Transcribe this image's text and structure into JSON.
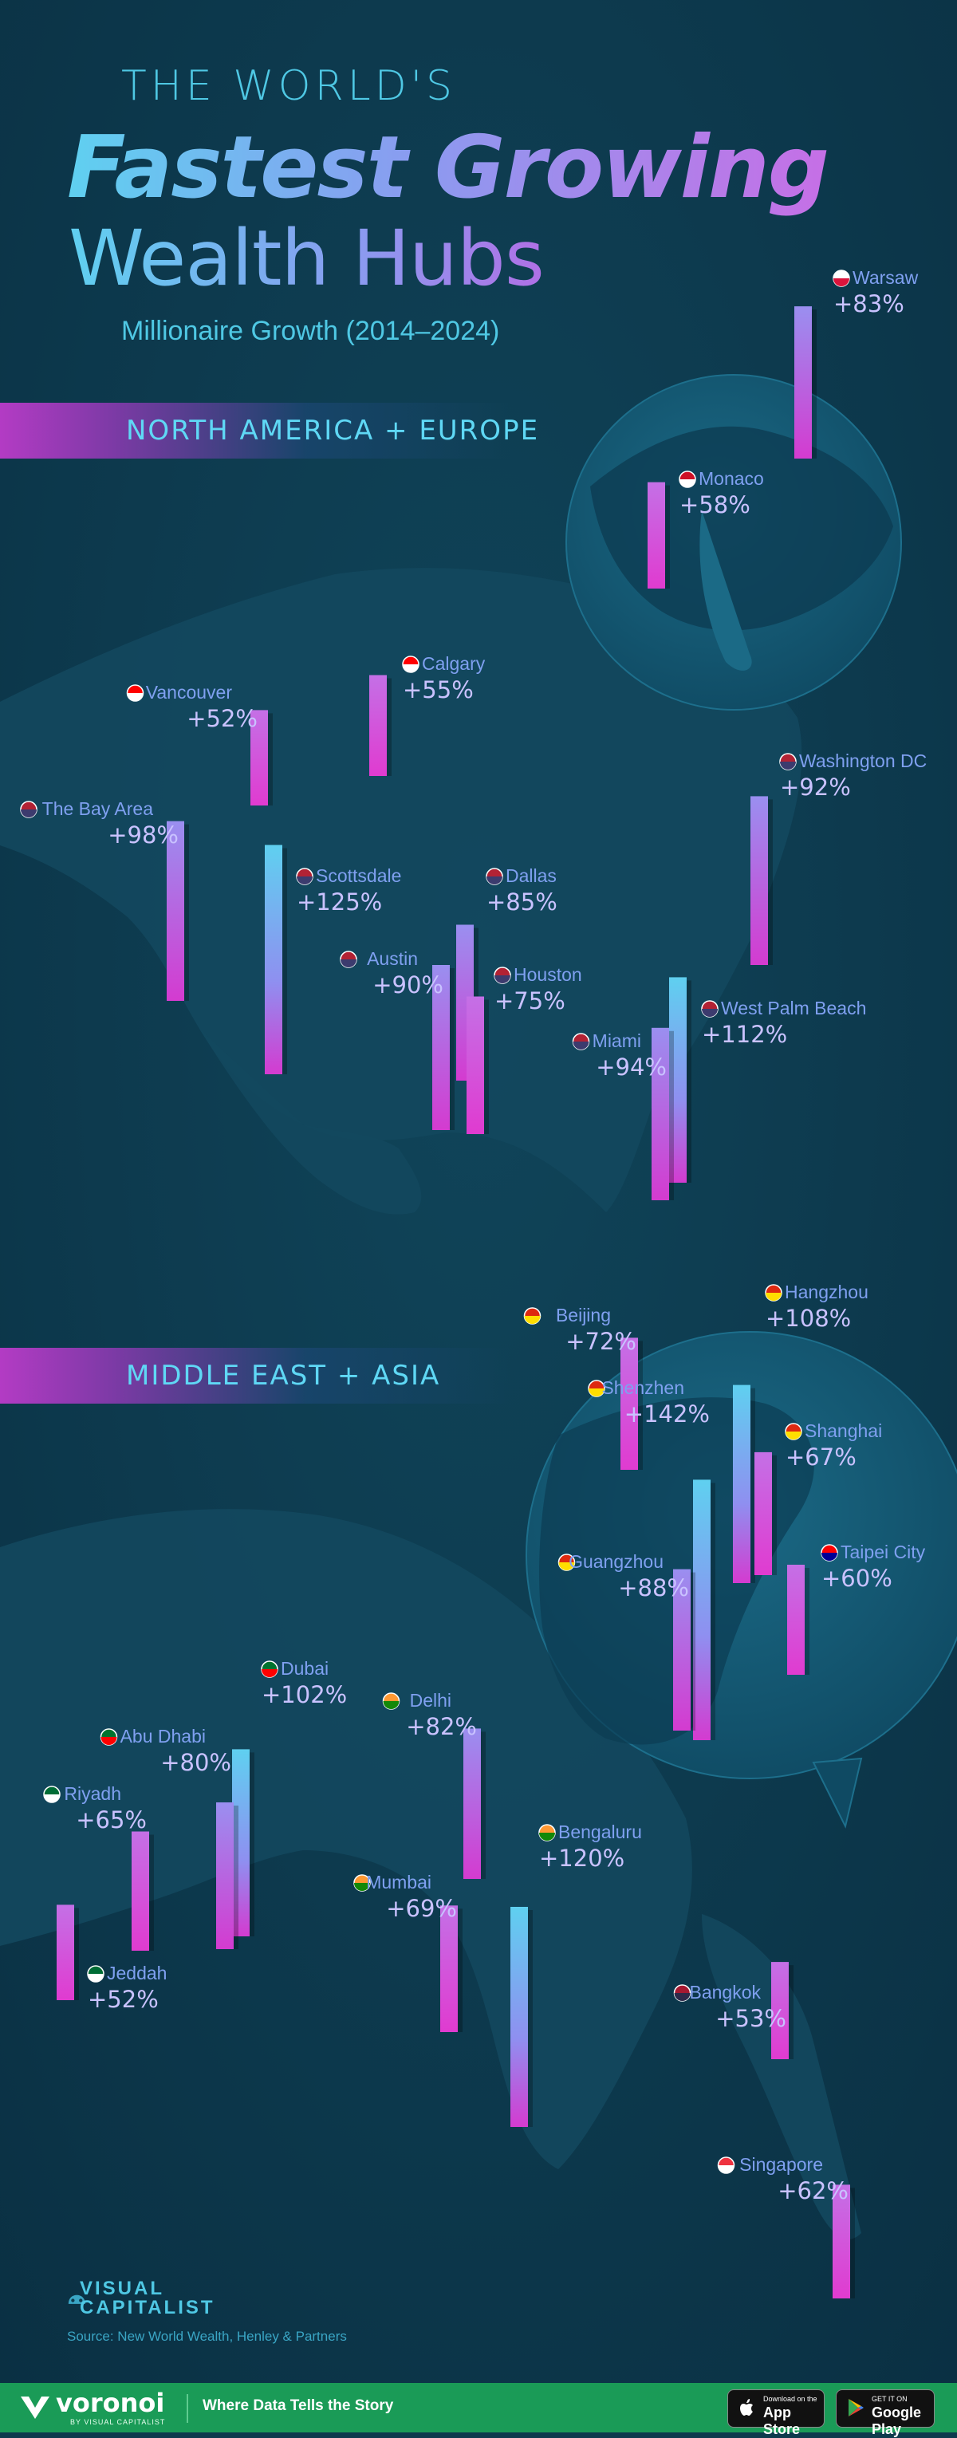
{
  "header": {
    "kicker": "THE WORLD'S",
    "title_line1": "Fastest Growing",
    "title_line2": "Wealth Hubs",
    "subtitle": "Millionaire Growth (2014–2024)"
  },
  "regions": [
    {
      "label": "NORTH AMERICA + EUROPE"
    },
    {
      "label": "MIDDLE EAST + ASIA"
    }
  ],
  "colors": {
    "background": "#0d3a4d",
    "bar_high": "#5fd0f0",
    "bar_mid": "#8f8ff0",
    "bar_low": "#d43bd0",
    "label_name": "#7fa0f0",
    "label_value": "#c9c2ff",
    "footer": "#1a9b57"
  },
  "chart_data": {
    "type": "bar",
    "title": "The World's Fastest Growing Wealth Hubs",
    "subtitle": "Millionaire Growth (2014–2024)",
    "unit": "%",
    "categories": [
      "Warsaw",
      "Monaco",
      "Calgary",
      "Vancouver",
      "The Bay Area",
      "Scottsdale",
      "Austin",
      "Dallas",
      "Houston",
      "Washington DC",
      "West Palm Beach",
      "Miami",
      "Beijing",
      "Hangzhou",
      "Shenzhen",
      "Shanghai",
      "Guangzhou",
      "Taipei City",
      "Dubai",
      "Abu Dhabi",
      "Riyadh",
      "Jeddah",
      "Delhi",
      "Mumbai",
      "Bengaluru",
      "Bangkok",
      "Singapore"
    ],
    "values": [
      83,
      58,
      55,
      52,
      98,
      125,
      90,
      85,
      75,
      92,
      112,
      94,
      72,
      108,
      142,
      67,
      88,
      60,
      102,
      80,
      65,
      52,
      82,
      69,
      120,
      53,
      62
    ],
    "value_labels": [
      "+83%",
      "+58%",
      "+55%",
      "+52%",
      "+98%",
      "+125%",
      "+90%",
      "+85%",
      "+75%",
      "+92%",
      "+112%",
      "+94%",
      "+72%",
      "+108%",
      "+142%",
      "+67%",
      "+88%",
      "+60%",
      "+102%",
      "+80%",
      "+65%",
      "+52%",
      "+82%",
      "+69%",
      "+120%",
      "+53%",
      "+62%"
    ],
    "countries": [
      "poland",
      "monaco",
      "canada",
      "canada",
      "usa",
      "usa",
      "usa",
      "usa",
      "usa",
      "usa",
      "usa",
      "usa",
      "china",
      "china",
      "china",
      "china",
      "china",
      "taiwan",
      "uae",
      "uae",
      "saudi",
      "saudi",
      "india",
      "india",
      "india",
      "thailand",
      "singapore"
    ],
    "groups": [
      "NORTH AMERICA + EUROPE",
      "NORTH AMERICA + EUROPE",
      "NORTH AMERICA + EUROPE",
      "NORTH AMERICA + EUROPE",
      "NORTH AMERICA + EUROPE",
      "NORTH AMERICA + EUROPE",
      "NORTH AMERICA + EUROPE",
      "NORTH AMERICA + EUROPE",
      "NORTH AMERICA + EUROPE",
      "NORTH AMERICA + EUROPE",
      "NORTH AMERICA + EUROPE",
      "NORTH AMERICA + EUROPE",
      "MIDDLE EAST + ASIA",
      "MIDDLE EAST + ASIA",
      "MIDDLE EAST + ASIA",
      "MIDDLE EAST + ASIA",
      "MIDDLE EAST + ASIA",
      "MIDDLE EAST + ASIA",
      "MIDDLE EAST + ASIA",
      "MIDDLE EAST + ASIA",
      "MIDDLE EAST + ASIA",
      "MIDDLE EAST + ASIA",
      "MIDDLE EAST + ASIA",
      "MIDDLE EAST + ASIA",
      "MIDDLE EAST + ASIA",
      "MIDDLE EAST + ASIA",
      "MIDDLE EAST + ASIA"
    ],
    "xlabel": "",
    "ylabel": "",
    "grid": false,
    "legend": "none"
  },
  "branding": {
    "logo_line1": "VISUAL",
    "logo_line2": "CAPITALIST",
    "source": "Source: New World Wealth, Henley & Partners"
  },
  "footer": {
    "brand": "voronoi",
    "brand_sub": "BY VISUAL CAPITALIST",
    "tagline": "Where Data Tells the Story",
    "app_store_small": "Download on the",
    "app_store_big": "App Store",
    "google_small": "GET IT ON",
    "google_big": "Google Play"
  }
}
